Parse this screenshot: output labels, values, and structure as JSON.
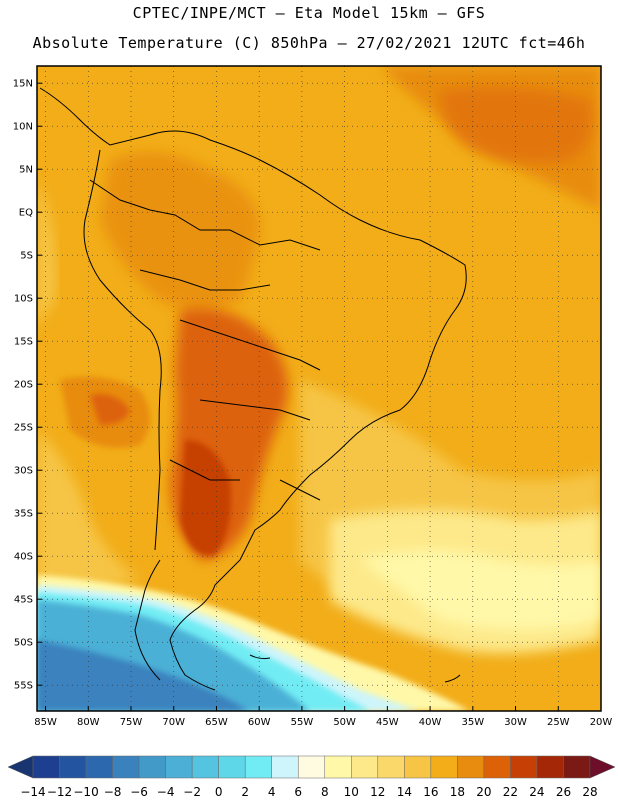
{
  "title_line1": "CPTEC/INPE/MCT –  Eta Model 15km – GFS",
  "title_line2": "Absolute Temperature (C) 850hPa – 27/02/2021 12UTC fct=46h",
  "lat_labels": [
    "15N",
    "10N",
    "5N",
    "EQ",
    "5S",
    "10S",
    "15S",
    "20S",
    "25S",
    "30S",
    "35S",
    "40S",
    "45S",
    "50S",
    "55S"
  ],
  "lat_values": [
    15,
    10,
    5,
    0,
    -5,
    -10,
    -15,
    -20,
    -25,
    -30,
    -35,
    -40,
    -45,
    -50,
    -55
  ],
  "lon_labels": [
    "85W",
    "80W",
    "75W",
    "70W",
    "65W",
    "60W",
    "55W",
    "50W",
    "45W",
    "40W",
    "35W",
    "30W",
    "25W",
    "20W"
  ],
  "lon_values": [
    -85,
    -80,
    -75,
    -70,
    -65,
    -60,
    -55,
    -50,
    -45,
    -40,
    -35,
    -30,
    -25,
    -20
  ],
  "lat_range": [
    -58,
    17
  ],
  "lon_range": [
    -86,
    -20
  ],
  "colorbar": {
    "labels": [
      "-14",
      "-12",
      "-10",
      "-8",
      "-6",
      "-4",
      "-2",
      "0",
      "2",
      "4",
      "6",
      "8",
      "10",
      "12",
      "14",
      "16",
      "18",
      "20",
      "22",
      "24",
      "26",
      "28"
    ],
    "colors": [
      "#1e3f8f",
      "#23549f",
      "#2c68ae",
      "#3a82be",
      "#429ac9",
      "#4cb0d6",
      "#54c4e0",
      "#5ed8e8",
      "#72ecf4",
      "#cdf5fb",
      "#fffbe0",
      "#fff8a8",
      "#fde98a",
      "#fbd86a",
      "#f6c545",
      "#f2ad19",
      "#e88c10",
      "#dd6207",
      "#c64005",
      "#a42808",
      "#7b1a14"
    ],
    "left_arrow_color": "#183572",
    "right_arrow_color": "#6d0f2a"
  }
}
